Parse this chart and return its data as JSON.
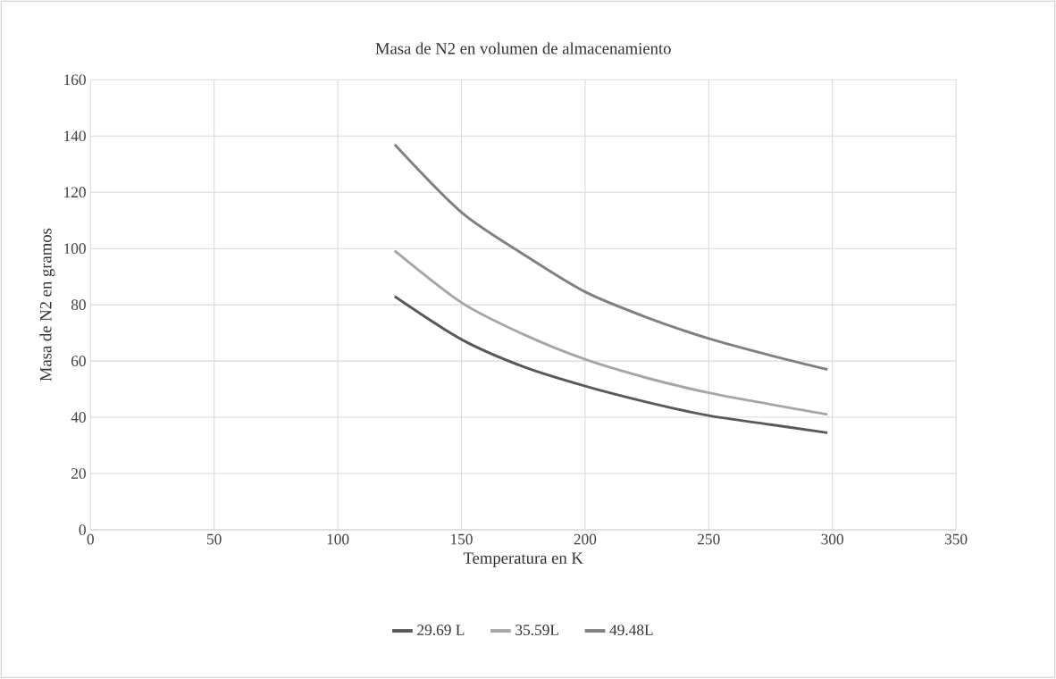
{
  "chart_data": {
    "type": "line",
    "title": "Masa de N2 en volumen de almacenamiento",
    "xlabel": "Temperatura en K",
    "ylabel": "Masa de N2 en gramos",
    "x": [
      123,
      150,
      175,
      200,
      225,
      250,
      275,
      298
    ],
    "series": [
      {
        "name": "29.69 L",
        "color": "#595959",
        "values": [
          83,
          67.7,
          58,
          51.1,
          45.4,
          40.6,
          37.4,
          34.5
        ]
      },
      {
        "name": "35.59L",
        "color": "#a6a6a6",
        "values": [
          99.2,
          80.8,
          69.5,
          60.6,
          54,
          48.7,
          44.6,
          41
        ]
      },
      {
        "name": "49.48L",
        "color": "#808080",
        "values": [
          137,
          112.9,
          98,
          84.6,
          75.5,
          68,
          62,
          57
        ]
      }
    ],
    "xlim": [
      0,
      350
    ],
    "xticks": [
      0,
      50,
      100,
      150,
      200,
      250,
      300,
      350
    ],
    "ylim": [
      0,
      160
    ],
    "yticks": [
      0,
      20,
      40,
      60,
      80,
      100,
      120,
      140,
      160
    ],
    "grid": true,
    "legend": "bottom",
    "marker": "none",
    "line_style": "solid"
  }
}
